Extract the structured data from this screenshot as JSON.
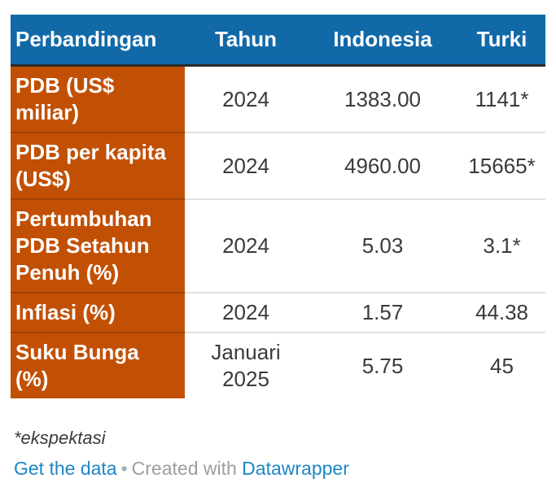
{
  "chart_data": {
    "type": "table",
    "columns": [
      "Perbandingan",
      "Tahun",
      "Indonesia",
      "Turki"
    ],
    "rows": [
      [
        "PDB (US$ miliar)",
        "2024",
        "1383.00",
        "1141*"
      ],
      [
        "PDB per kapita (US$)",
        "2024",
        "4960.00",
        "15665*"
      ],
      [
        "Pertumbuhan PDB Setahun Penuh (%)",
        "2024",
        "5.03",
        "3.1*"
      ],
      [
        "Inflasi (%)",
        "2024",
        "1.57",
        "44.38"
      ],
      [
        "Suku Bunga (%)",
        "Januari 2025",
        "5.75",
        "45"
      ]
    ],
    "footnote": "*ekspektasi",
    "layout_hints": {
      "first_column_style": "orange header cells, bold white text, left aligned",
      "value_alignment": "center",
      "grid": "horizontal row separators only"
    }
  },
  "footer": {
    "get_data_label": "Get the data",
    "separator": "•",
    "created_with": "Created with",
    "datawrapper_label": "Datawrapper"
  },
  "colors": {
    "header_bg": "#1169a8",
    "row_label_bg": "#c25004",
    "header_border": "#2b2b2b",
    "value_text": "#3a3a3a",
    "link_blue": "#1d87c5",
    "muted_gray": "#9e9e9e"
  }
}
